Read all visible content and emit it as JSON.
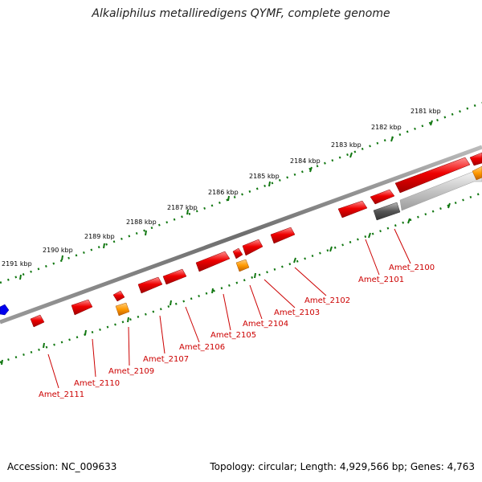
{
  "title": "Alkaliphilus metalliredigens QYMF, complete genome",
  "footer": {
    "accession": "Accession: NC_009633",
    "info": "Topology: circular; Length: 4,929,566 bp; Genes: 4,763"
  },
  "colors": {
    "gene_forward": "#ee0000",
    "gene_reverse": "#ee0000",
    "rna": "#ff9900",
    "pseudogene": "#555555",
    "highlight": "#0000ee",
    "backbone": "#777777",
    "tick_track": "#117711",
    "label": "#cc0000"
  },
  "scale_labels": [
    "2181 kbp",
    "2182 kbp",
    "2183 kbp",
    "2184 kbp",
    "2185 kbp",
    "2186 kbp",
    "2187 kbp",
    "2188 kbp",
    "2189 kbp",
    "2190 kbp",
    "2191 kbp"
  ],
  "gene_labels": [
    "Amet_2100",
    "Amet_2101",
    "Amet_2102",
    "Amet_2103",
    "Amet_2104",
    "Amet_2105",
    "Amet_2106",
    "Amet_2107",
    "Amet_2109",
    "Amet_2110",
    "Amet_2111"
  ]
}
